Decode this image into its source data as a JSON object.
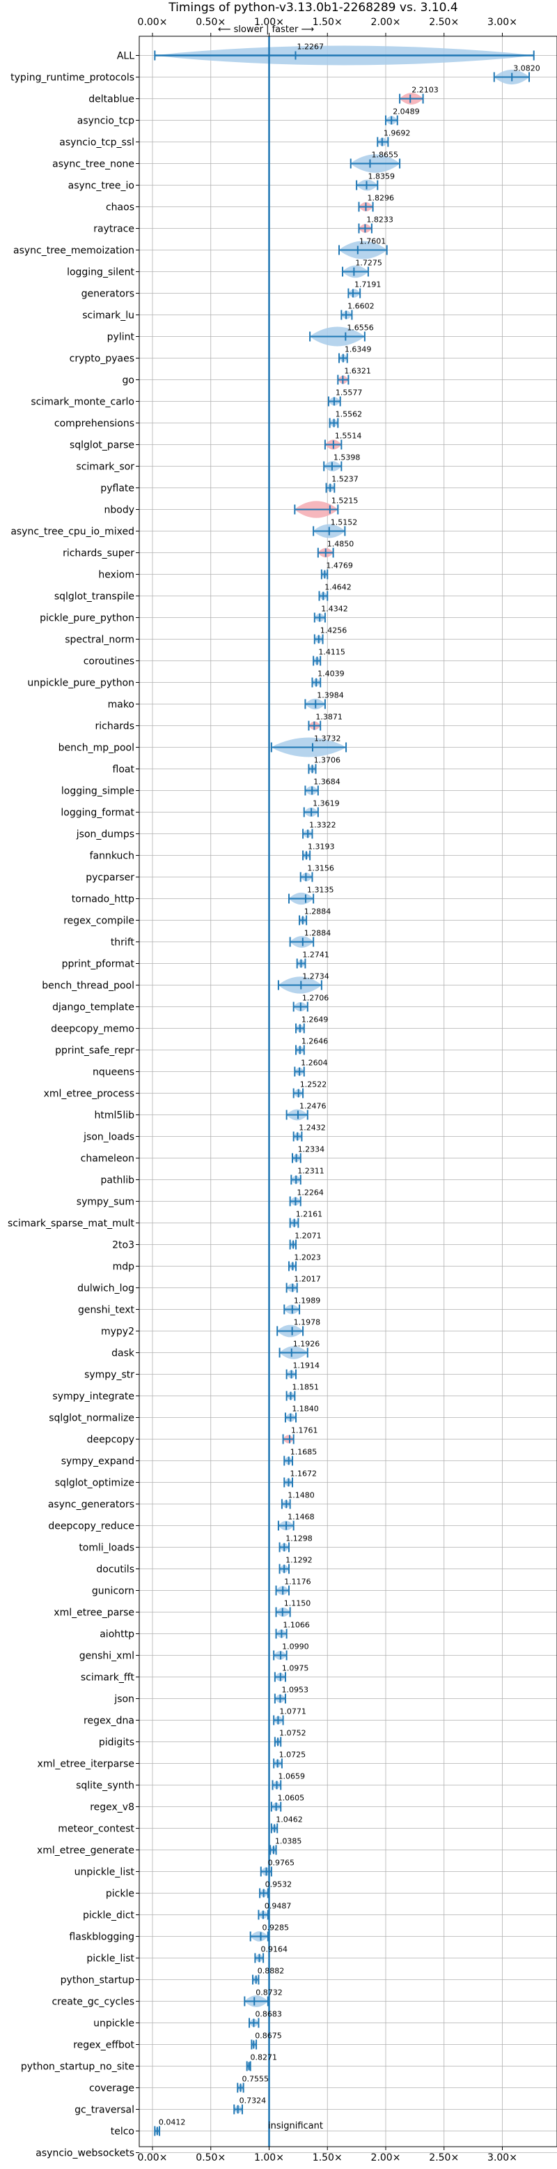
{
  "chart_data": {
    "type": "violin",
    "title": "Timings of python-v3.13.0b1-2268289 vs. 3.10.4",
    "top_annotation": "⟵ slower | faster ⟶",
    "bottom_annotation": "insignificant",
    "xlim": [
      -0.1,
      3.4
    ],
    "x_ticks": [
      0.0,
      0.5,
      1.0,
      1.5,
      2.0,
      2.5,
      3.0
    ],
    "x_tick_labels": [
      "0.00×",
      "0.50×",
      "1.00×",
      "1.50×",
      "2.00×",
      "2.50×",
      "3.00×"
    ],
    "reference_line": 1.0,
    "grid": true,
    "colors": {
      "violin": "#a9cdea",
      "highlight": "#f4aab2",
      "line": "#1f77b4",
      "grid": "#b0b0b0"
    },
    "categories": [
      "ALL",
      "typing_runtime_protocols",
      "deltablue",
      "asyncio_tcp",
      "asyncio_tcp_ssl",
      "async_tree_none",
      "async_tree_io",
      "chaos",
      "raytrace",
      "async_tree_memoization",
      "logging_silent",
      "generators",
      "scimark_lu",
      "pylint",
      "crypto_pyaes",
      "go",
      "scimark_monte_carlo",
      "comprehensions",
      "sqlglot_parse",
      "scimark_sor",
      "pyflate",
      "nbody",
      "async_tree_cpu_io_mixed",
      "richards_super",
      "hexiom",
      "sqlglot_transpile",
      "pickle_pure_python",
      "spectral_norm",
      "coroutines",
      "unpickle_pure_python",
      "mako",
      "richards",
      "bench_mp_pool",
      "float",
      "logging_simple",
      "logging_format",
      "json_dumps",
      "fannkuch",
      "pycparser",
      "tornado_http",
      "regex_compile",
      "thrift",
      "pprint_pformat",
      "bench_thread_pool",
      "django_template",
      "deepcopy_memo",
      "pprint_safe_repr",
      "nqueens",
      "xml_etree_process",
      "html5lib",
      "json_loads",
      "chameleon",
      "pathlib",
      "sympy_sum",
      "scimark_sparse_mat_mult",
      "2to3",
      "mdp",
      "dulwich_log",
      "genshi_text",
      "mypy2",
      "dask",
      "sympy_str",
      "sympy_integrate",
      "sqlglot_normalize",
      "deepcopy",
      "sympy_expand",
      "sqlglot_optimize",
      "async_generators",
      "deepcopy_reduce",
      "tomli_loads",
      "docutils",
      "gunicorn",
      "xml_etree_parse",
      "aiohttp",
      "genshi_xml",
      "scimark_fft",
      "json",
      "regex_dna",
      "pidigits",
      "xml_etree_iterparse",
      "sqlite_synth",
      "regex_v8",
      "meteor_contest",
      "xml_etree_generate",
      "unpickle_list",
      "pickle",
      "pickle_dict",
      "flaskblogging",
      "pickle_list",
      "python_startup",
      "create_gc_cycles",
      "unpickle",
      "regex_effbot",
      "python_startup_no_site",
      "coverage",
      "gc_traversal",
      "telco",
      "asyncio_websockets"
    ],
    "values": [
      1.2267,
      3.082,
      2.2103,
      2.0489,
      1.9692,
      1.8655,
      1.8359,
      1.8296,
      1.8233,
      1.7601,
      1.7275,
      1.7191,
      1.6602,
      1.6556,
      1.6349,
      1.6321,
      1.5577,
      1.5562,
      1.5514,
      1.5398,
      1.5237,
      1.5215,
      1.5152,
      1.485,
      1.4769,
      1.4642,
      1.4342,
      1.4256,
      1.4115,
      1.4039,
      1.3984,
      1.3871,
      1.3732,
      1.3706,
      1.3684,
      1.3619,
      1.3322,
      1.3193,
      1.3156,
      1.3135,
      1.2884,
      1.2884,
      1.2741,
      1.2734,
      1.2706,
      1.2649,
      1.2646,
      1.2604,
      1.2522,
      1.2476,
      1.2432,
      1.2334,
      1.2311,
      1.2264,
      1.2161,
      1.2071,
      1.2023,
      1.2017,
      1.1989,
      1.1978,
      1.1926,
      1.1914,
      1.1851,
      1.184,
      1.1761,
      1.1685,
      1.1672,
      1.148,
      1.1468,
      1.1298,
      1.1292,
      1.1176,
      1.115,
      1.1066,
      1.099,
      1.0975,
      1.0953,
      1.0771,
      1.0752,
      1.0725,
      1.0659,
      1.0605,
      1.0462,
      1.0385,
      0.9765,
      0.9532,
      0.9487,
      0.9285,
      0.9164,
      0.8882,
      0.8732,
      0.8683,
      0.8675,
      0.8271,
      0.7555,
      0.7324,
      0.0412,
      null
    ],
    "value_labels": [
      "1.2267",
      "3.0820",
      "2.2103",
      "2.0489",
      "1.9692",
      "1.8655",
      "1.8359",
      "1.8296",
      "1.8233",
      "1.7601",
      "1.7275",
      "1.7191",
      "1.6602",
      "1.6556",
      "1.6349",
      "1.6321",
      "1.5577",
      "1.5562",
      "1.5514",
      "1.5398",
      "1.5237",
      "1.5215",
      "1.5152",
      "1.4850",
      "1.4769",
      "1.4642",
      "1.4342",
      "1.4256",
      "1.4115",
      "1.4039",
      "1.3984",
      "1.3871",
      "1.3732",
      "1.3706",
      "1.3684",
      "1.3619",
      "1.3322",
      "1.3193",
      "1.3156",
      "1.3135",
      "1.2884",
      "1.2884",
      "1.2741",
      "1.2734",
      "1.2706",
      "1.2649",
      "1.2646",
      "1.2604",
      "1.2522",
      "1.2476",
      "1.2432",
      "1.2334",
      "1.2311",
      "1.2264",
      "1.2161",
      "1.2071",
      "1.2023",
      "1.2017",
      "1.1989",
      "1.1978",
      "1.1926",
      "1.1914",
      "1.1851",
      "1.1840",
      "1.1761",
      "1.1685",
      "1.1672",
      "1.1480",
      "1.1468",
      "1.1298",
      "1.1292",
      "1.1176",
      "1.1150",
      "1.1066",
      "1.0990",
      "1.0975",
      "1.0953",
      "1.0771",
      "1.0752",
      "1.0725",
      "1.0659",
      "1.0605",
      "1.0462",
      "1.0385",
      "0.9765",
      "0.9532",
      "0.9487",
      "0.9285",
      "0.9164",
      "0.8882",
      "0.8732",
      "0.8683",
      "0.8675",
      "0.8271",
      "0.7555",
      "0.7324",
      "0.0412",
      ""
    ],
    "ranges": [
      [
        0.02,
        3.27
      ],
      [
        2.93,
        3.23
      ],
      [
        2.12,
        2.32
      ],
      [
        2.0,
        2.1
      ],
      [
        1.93,
        2.02
      ],
      [
        1.7,
        2.12
      ],
      [
        1.75,
        1.93
      ],
      [
        1.77,
        1.89
      ],
      [
        1.77,
        1.88
      ],
      [
        1.6,
        2.01
      ],
      [
        1.63,
        1.85
      ],
      [
        1.68,
        1.78
      ],
      [
        1.62,
        1.71
      ],
      [
        1.35,
        1.82
      ],
      [
        1.6,
        1.67
      ],
      [
        1.59,
        1.68
      ],
      [
        1.51,
        1.61
      ],
      [
        1.52,
        1.59
      ],
      [
        1.48,
        1.62
      ],
      [
        1.47,
        1.62
      ],
      [
        1.49,
        1.56
      ],
      [
        1.22,
        1.59
      ],
      [
        1.38,
        1.65
      ],
      [
        1.42,
        1.55
      ],
      [
        1.45,
        1.5
      ],
      [
        1.43,
        1.5
      ],
      [
        1.39,
        1.48
      ],
      [
        1.39,
        1.46
      ],
      [
        1.38,
        1.44
      ],
      [
        1.37,
        1.44
      ],
      [
        1.31,
        1.48
      ],
      [
        1.34,
        1.44
      ],
      [
        1.02,
        1.66
      ],
      [
        1.34,
        1.4
      ],
      [
        1.31,
        1.42
      ],
      [
        1.3,
        1.42
      ],
      [
        1.29,
        1.37
      ],
      [
        1.29,
        1.35
      ],
      [
        1.27,
        1.37
      ],
      [
        1.17,
        1.38
      ],
      [
        1.26,
        1.32
      ],
      [
        1.18,
        1.38
      ],
      [
        1.24,
        1.31
      ],
      [
        1.08,
        1.45
      ],
      [
        1.21,
        1.33
      ],
      [
        1.23,
        1.3
      ],
      [
        1.23,
        1.3
      ],
      [
        1.22,
        1.3
      ],
      [
        1.21,
        1.29
      ],
      [
        1.15,
        1.33
      ],
      [
        1.21,
        1.28
      ],
      [
        1.2,
        1.27
      ],
      [
        1.19,
        1.27
      ],
      [
        1.18,
        1.27
      ],
      [
        1.18,
        1.25
      ],
      [
        1.18,
        1.23
      ],
      [
        1.17,
        1.23
      ],
      [
        1.15,
        1.24
      ],
      [
        1.13,
        1.26
      ],
      [
        1.07,
        1.29
      ],
      [
        1.09,
        1.33
      ],
      [
        1.15,
        1.23
      ],
      [
        1.15,
        1.22
      ],
      [
        1.14,
        1.23
      ],
      [
        1.12,
        1.21
      ],
      [
        1.13,
        1.2
      ],
      [
        1.13,
        1.2
      ],
      [
        1.11,
        1.18
      ],
      [
        1.08,
        1.21
      ],
      [
        1.09,
        1.17
      ],
      [
        1.09,
        1.17
      ],
      [
        1.06,
        1.17
      ],
      [
        1.06,
        1.18
      ],
      [
        1.06,
        1.15
      ],
      [
        1.04,
        1.15
      ],
      [
        1.05,
        1.14
      ],
      [
        1.05,
        1.14
      ],
      [
        1.04,
        1.12
      ],
      [
        1.05,
        1.1
      ],
      [
        1.04,
        1.11
      ],
      [
        1.03,
        1.1
      ],
      [
        1.02,
        1.1
      ],
      [
        1.02,
        1.07
      ],
      [
        1.01,
        1.06
      ],
      [
        0.93,
        1.02
      ],
      [
        0.92,
        0.99
      ],
      [
        0.91,
        0.99
      ],
      [
        0.84,
        0.99
      ],
      [
        0.88,
        0.95
      ],
      [
        0.86,
        0.91
      ],
      [
        0.79,
        0.99
      ],
      [
        0.83,
        0.91
      ],
      [
        0.85,
        0.89
      ],
      [
        0.81,
        0.84
      ],
      [
        0.73,
        0.78
      ],
      [
        0.7,
        0.77
      ],
      [
        0.02,
        0.06
      ],
      null
    ],
    "highlighted": [
      "deltablue",
      "chaos",
      "raytrace",
      "go",
      "sqlglot_parse",
      "nbody",
      "richards_super",
      "richards",
      "deepcopy"
    ]
  }
}
